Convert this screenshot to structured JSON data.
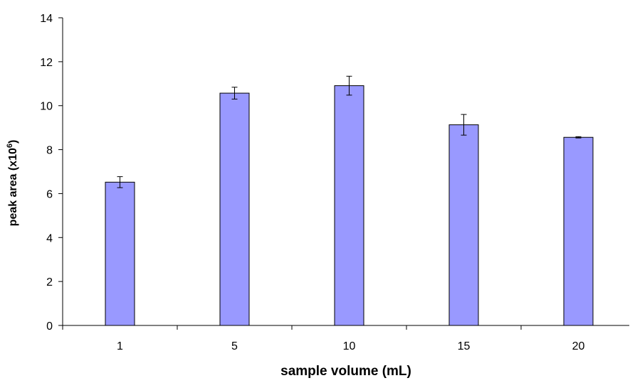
{
  "chart_data": {
    "type": "bar",
    "categories": [
      "1",
      "5",
      "10",
      "15",
      "20"
    ],
    "values": [
      6.52,
      10.57,
      10.91,
      9.13,
      8.56
    ],
    "errors": [
      0.25,
      0.27,
      0.43,
      0.47,
      0.03
    ],
    "xlabel": "sample volume (mL)",
    "ylabel_main": "peak area (x10",
    "ylabel_sup": "6",
    "ylabel_end": ")",
    "ylim": [
      0,
      14
    ],
    "yticks": [
      "0",
      "2",
      "4",
      "6",
      "8",
      "10",
      "12",
      "14"
    ],
    "grid": false,
    "bar_color": "#9999ff",
    "bar_stroke": "#000000"
  }
}
